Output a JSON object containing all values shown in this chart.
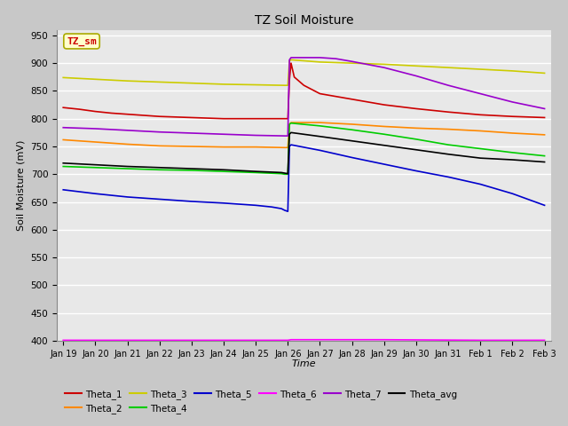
{
  "title": "TZ Soil Moisture",
  "xlabel": "Time",
  "ylabel": "Soil Moisture (mV)",
  "ylim": [
    400,
    960
  ],
  "yticks": [
    400,
    450,
    500,
    550,
    600,
    650,
    700,
    750,
    800,
    850,
    900,
    950
  ],
  "annotation_label": "TZ_sm",
  "annotation_color": "#cc0000",
  "annotation_bg": "#ffffcc",
  "annotation_edge": "#aaaa00",
  "series": {
    "Theta_1": {
      "color": "#cc0000",
      "points": [
        [
          0,
          820
        ],
        [
          0.5,
          817
        ],
        [
          1,
          813
        ],
        [
          1.5,
          810
        ],
        [
          2,
          808
        ],
        [
          3,
          804
        ],
        [
          4,
          802
        ],
        [
          5,
          800
        ],
        [
          6,
          800
        ],
        [
          6.8,
          800
        ],
        [
          6.9,
          800
        ],
        [
          7.0,
          800
        ],
        [
          7.05,
          870
        ],
        [
          7.1,
          900
        ],
        [
          7.2,
          875
        ],
        [
          7.5,
          860
        ],
        [
          8,
          845
        ],
        [
          9,
          835
        ],
        [
          10,
          825
        ],
        [
          11,
          818
        ],
        [
          12,
          812
        ],
        [
          13,
          807
        ],
        [
          14,
          804
        ],
        [
          15,
          802
        ]
      ]
    },
    "Theta_2": {
      "color": "#ff8800",
      "points": [
        [
          0,
          762
        ],
        [
          1,
          758
        ],
        [
          2,
          754
        ],
        [
          3,
          751
        ],
        [
          4,
          750
        ],
        [
          5,
          749
        ],
        [
          6,
          749
        ],
        [
          6.9,
          748
        ],
        [
          7.0,
          748
        ],
        [
          7.05,
          790
        ],
        [
          7.1,
          793
        ],
        [
          8,
          793
        ],
        [
          9,
          790
        ],
        [
          10,
          786
        ],
        [
          11,
          783
        ],
        [
          12,
          781
        ],
        [
          13,
          778
        ],
        [
          14,
          774
        ],
        [
          15,
          771
        ]
      ]
    },
    "Theta_3": {
      "color": "#cccc00",
      "points": [
        [
          0,
          874
        ],
        [
          1,
          871
        ],
        [
          2,
          868
        ],
        [
          3,
          866
        ],
        [
          4,
          864
        ],
        [
          5,
          862
        ],
        [
          6,
          861
        ],
        [
          6.9,
          860
        ],
        [
          7.0,
          860
        ],
        [
          7.05,
          904
        ],
        [
          7.1,
          906
        ],
        [
          8,
          902
        ],
        [
          9,
          900
        ],
        [
          10,
          898
        ],
        [
          11,
          895
        ],
        [
          12,
          892
        ],
        [
          13,
          889
        ],
        [
          14,
          886
        ],
        [
          15,
          882
        ]
      ]
    },
    "Theta_4": {
      "color": "#00cc00",
      "points": [
        [
          0,
          714
        ],
        [
          1,
          712
        ],
        [
          2,
          710
        ],
        [
          3,
          708
        ],
        [
          4,
          707
        ],
        [
          5,
          705
        ],
        [
          6,
          703
        ],
        [
          6.8,
          701
        ],
        [
          6.9,
          700
        ],
        [
          7.0,
          700
        ],
        [
          7.05,
          790
        ],
        [
          7.1,
          792
        ],
        [
          8,
          787
        ],
        [
          9,
          780
        ],
        [
          10,
          772
        ],
        [
          11,
          763
        ],
        [
          12,
          753
        ],
        [
          13,
          746
        ],
        [
          14,
          739
        ],
        [
          15,
          733
        ]
      ]
    },
    "Theta_5": {
      "color": "#0000cc",
      "points": [
        [
          0,
          672
        ],
        [
          1,
          665
        ],
        [
          2,
          659
        ],
        [
          3,
          655
        ],
        [
          4,
          651
        ],
        [
          5,
          648
        ],
        [
          6,
          644
        ],
        [
          6.5,
          641
        ],
        [
          6.8,
          638
        ],
        [
          6.9,
          635
        ],
        [
          7.0,
          633
        ],
        [
          7.05,
          750
        ],
        [
          7.1,
          753
        ],
        [
          8,
          743
        ],
        [
          9,
          730
        ],
        [
          10,
          718
        ],
        [
          11,
          706
        ],
        [
          12,
          695
        ],
        [
          13,
          682
        ],
        [
          14,
          665
        ],
        [
          15,
          644
        ]
      ]
    },
    "Theta_6": {
      "color": "#ff00ff",
      "points": [
        [
          0,
          401
        ],
        [
          3,
          401
        ],
        [
          5,
          401
        ],
        [
          6,
          401
        ],
        [
          7,
          401
        ],
        [
          7.1,
          402
        ],
        [
          10,
          402
        ],
        [
          13,
          401
        ],
        [
          15,
          401
        ]
      ]
    },
    "Theta_7": {
      "color": "#9900cc",
      "points": [
        [
          0,
          784
        ],
        [
          1,
          782
        ],
        [
          2,
          779
        ],
        [
          3,
          776
        ],
        [
          4,
          774
        ],
        [
          5,
          772
        ],
        [
          6,
          770
        ],
        [
          6.9,
          769
        ],
        [
          7.0,
          769
        ],
        [
          7.05,
          906
        ],
        [
          7.1,
          910
        ],
        [
          7.5,
          910
        ],
        [
          8,
          910
        ],
        [
          8.5,
          908
        ],
        [
          9,
          903
        ],
        [
          10,
          892
        ],
        [
          11,
          877
        ],
        [
          12,
          860
        ],
        [
          13,
          845
        ],
        [
          14,
          830
        ],
        [
          15,
          818
        ]
      ]
    },
    "Theta_avg": {
      "color": "#000000",
      "points": [
        [
          0,
          720
        ],
        [
          1,
          717
        ],
        [
          2,
          714
        ],
        [
          3,
          712
        ],
        [
          4,
          710
        ],
        [
          5,
          708
        ],
        [
          6,
          705
        ],
        [
          6.8,
          703
        ],
        [
          6.9,
          702
        ],
        [
          7.0,
          701
        ],
        [
          7.05,
          772
        ],
        [
          7.1,
          775
        ],
        [
          8,
          768
        ],
        [
          9,
          760
        ],
        [
          10,
          752
        ],
        [
          11,
          744
        ],
        [
          12,
          736
        ],
        [
          13,
          729
        ],
        [
          14,
          726
        ],
        [
          15,
          722
        ]
      ]
    }
  },
  "x_tick_labels": [
    "Jan 19",
    "Jan 20",
    "Jan 21",
    "Jan 22",
    "Jan 23",
    "Jan 24",
    "Jan 25",
    "Jan 26",
    "Jan 27",
    "Jan 28",
    "Jan 29",
    "Jan 30",
    "Jan 31",
    "Feb 1",
    "Feb 2",
    "Feb 3"
  ],
  "x_tick_positions": [
    0,
    1,
    2,
    3,
    4,
    5,
    6,
    7,
    8,
    9,
    10,
    11,
    12,
    13,
    14,
    15
  ],
  "legend_order": [
    "Theta_1",
    "Theta_2",
    "Theta_3",
    "Theta_4",
    "Theta_5",
    "Theta_6",
    "Theta_7",
    "Theta_avg"
  ]
}
